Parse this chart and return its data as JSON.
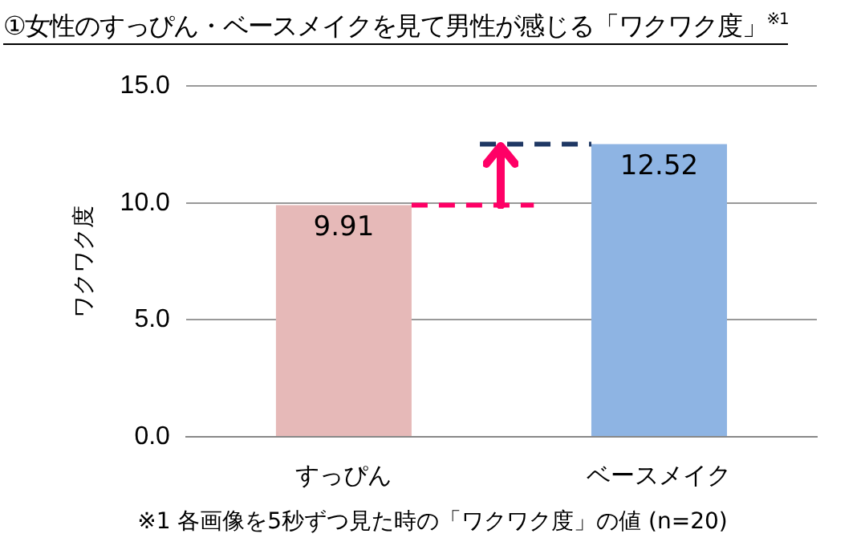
{
  "chart_data": {
    "type": "bar",
    "title": "①女性のすっぴん・ベースメイクを見て男性が感じる「ワクワク度」$^{※1}$",
    "ylabel": "ワクワク度",
    "categories": [
      "すっぴん",
      "ベースメイク"
    ],
    "values": [
      9.91,
      12.52
    ],
    "colors": [
      "#e6b9b8",
      "#8eb4e3"
    ],
    "ylim": [
      0,
      15
    ],
    "yticks": [
      {
        "value": 0,
        "label": "0.0"
      },
      {
        "value": 5,
        "label": "5.0"
      },
      {
        "value": 10,
        "label": "10.0"
      },
      {
        "value": 15,
        "label": "15.0"
      }
    ],
    "grid": "y",
    "data_labels": true,
    "ref_lines": [
      {
        "axis": "y",
        "value": 9.91,
        "color": "#ff0066",
        "line_style": "dashed"
      },
      {
        "axis": "y",
        "value": 12.52,
        "color": "#1f3864",
        "line_style": "dashed"
      }
    ],
    "annotations": [
      "※1  各画像を5秒ずつ見た時の「ワクワク度」の値 (n=20)"
    ]
  }
}
